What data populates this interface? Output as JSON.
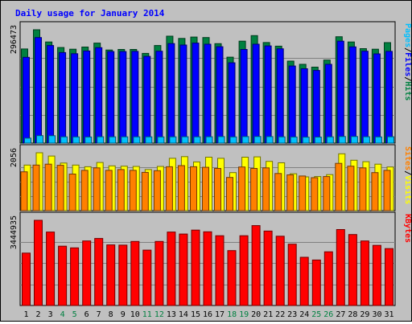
{
  "chart_data": {
    "type": "bar",
    "title": "Daily usage for January 2014",
    "categories": [
      "1",
      "2",
      "3",
      "4",
      "5",
      "6",
      "7",
      "8",
      "9",
      "10",
      "11",
      "12",
      "13",
      "14",
      "15",
      "16",
      "17",
      "18",
      "19",
      "20",
      "21",
      "22",
      "23",
      "24",
      "25",
      "26",
      "27",
      "28",
      "29",
      "30",
      "31"
    ],
    "weekend_days": [
      "4",
      "5",
      "11",
      "12",
      "18",
      "19",
      "25",
      "26"
    ],
    "panels": [
      {
        "id": "hits-panel",
        "max_label": "296473",
        "ylim": [
          0,
          296473
        ],
        "series": [
          {
            "name": "Hits",
            "color": "#008040",
            "values": [
              246273,
              296473,
              264600,
              249900,
              245500,
              251300,
              261500,
              243400,
              244900,
              244900,
              234600,
              255200,
              279600,
              273700,
              277400,
              276000,
              260000,
              224700,
              266600,
              281200,
              263100,
              253600,
              214500,
              206100,
              198700,
              217300,
              278200,
              264600,
              247000,
              245500,
              262900
            ]
          },
          {
            "name": "Files",
            "color": "#0000ff",
            "values": [
              224300,
              276000,
              255300,
              236800,
              233900,
              240900,
              249600,
              239400,
              239400,
              239900,
              226800,
              240400,
              260300,
              256600,
              261500,
              258700,
              252200,
              210100,
              245000,
              258700,
              254300,
              246600,
              201700,
              194400,
              190000,
              206100,
              266600,
              251600,
              240400,
              233300,
              239900
            ]
          },
          {
            "name": "Pages",
            "color": "#00c0ff",
            "values": [
              13000,
              19500,
              19300,
              16300,
              16100,
              16000,
              16700,
              16500,
              16300,
              16300,
              16300,
              16100,
              16500,
              16600,
              16400,
              16600,
              17000,
              16100,
              17100,
              17300,
              17000,
              16400,
              16000,
              15500,
              15800,
              16300,
              17200,
              17200,
              16600,
              16200,
              16600
            ]
          }
        ],
        "legend_parts": [
          "Pages",
          "/",
          "Files",
          "/",
          "Hits"
        ],
        "legend_colors": [
          "#00c0ff",
          "#000000",
          "#0000ff",
          "#000000",
          "#008040"
        ]
      },
      {
        "id": "visits-panel",
        "max_label": "2056",
        "ylim": [
          0,
          2056
        ],
        "series": [
          {
            "name": "Visits",
            "color": "#ffff00",
            "values": [
              1620,
              2056,
              1940,
              1690,
              1620,
              1560,
              1710,
              1590,
              1580,
              1570,
              1460,
              1570,
              1860,
              1920,
              1730,
              1900,
              1860,
              1350,
              1900,
              1910,
              1750,
              1700,
              1310,
              1200,
              1210,
              1280,
              2020,
              1790,
              1740,
              1650,
              1550
            ]
          },
          {
            "name": "Sites",
            "color": "#ff8000",
            "values": [
              1380,
              1620,
              1650,
              1610,
              1300,
              1430,
              1520,
              1430,
              1460,
              1430,
              1360,
              1420,
              1560,
              1600,
              1560,
              1540,
              1500,
              1180,
              1550,
              1500,
              1520,
              1320,
              1270,
              1230,
              1170,
              1210,
              1680,
              1580,
              1520,
              1350,
              1430
            ]
          }
        ],
        "legend_parts": [
          "Sites",
          "/",
          "Visits"
        ],
        "legend_colors": [
          "#ff8000",
          "#000000",
          "#ffff00"
        ]
      },
      {
        "id": "kbytes-panel",
        "max_label": "3444935",
        "ylim": [
          0,
          3444935
        ],
        "series": [
          {
            "name": "KBytes",
            "color": "#ff0000",
            "values": [
              2120000,
              3444935,
              2970000,
              2400000,
              2330000,
              2610000,
              2710000,
              2450000,
              2440000,
              2590000,
              2240000,
              2590000,
              2970000,
              2890000,
              3050000,
              2980000,
              2820000,
              2220000,
              2820000,
              3230000,
              3010000,
              2800000,
              2480000,
              1950000,
              1840000,
              2170000,
              3070000,
              2870000,
              2610000,
              2430000,
              2300000
            ]
          }
        ],
        "legend_parts": [
          "KBytes"
        ],
        "legend_colors": [
          "#ff0000"
        ]
      }
    ],
    "colors": {
      "background": "#c0c0c0",
      "plot": "#c0c0c0",
      "title": "#0000ff",
      "grid": "#808080",
      "weekend_label": "#008040",
      "weekday_label": "#000000"
    }
  }
}
